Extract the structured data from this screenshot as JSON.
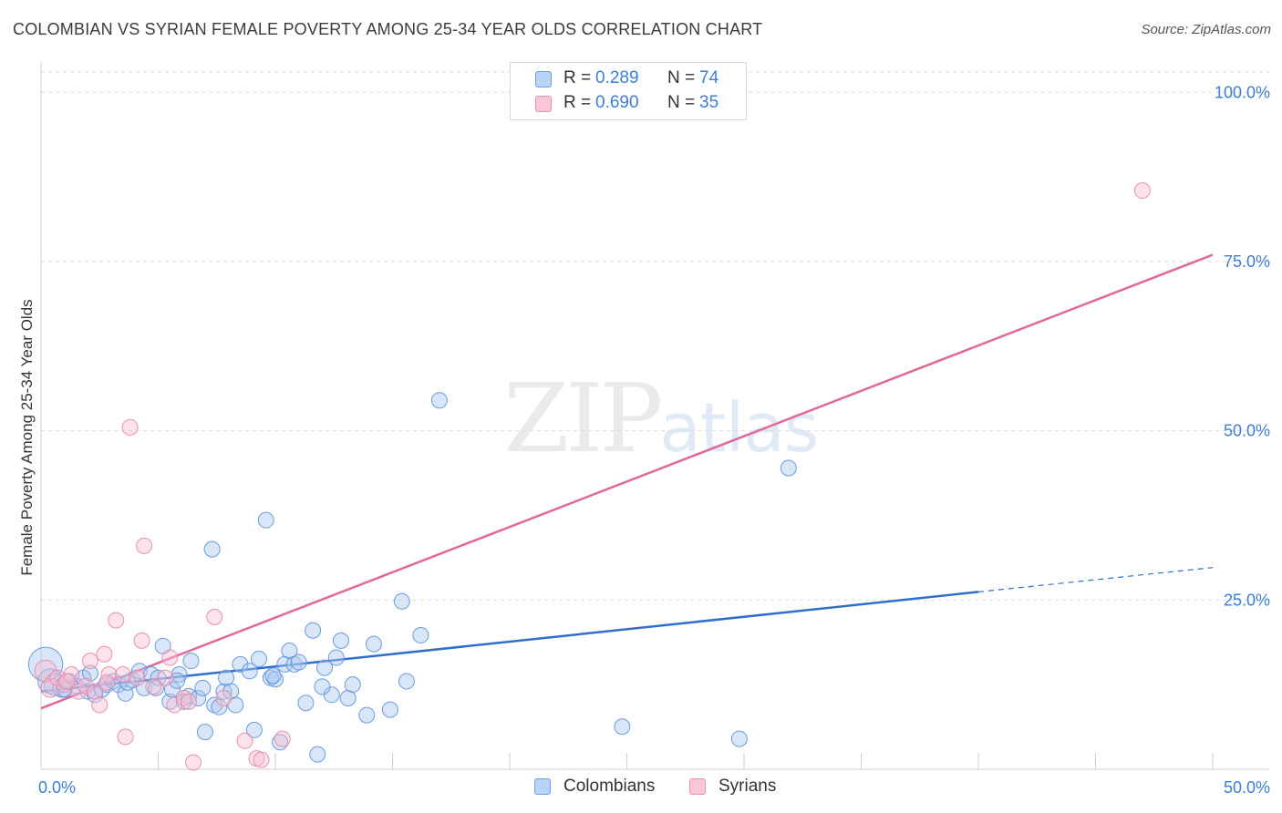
{
  "header": {
    "title": "COLOMBIAN VS SYRIAN FEMALE POVERTY AMONG 25-34 YEAR OLDS CORRELATION CHART",
    "source": "Source: ZipAtlas.com"
  },
  "watermark": {
    "zip": "ZIP",
    "atlas": "atlas"
  },
  "legend_top": {
    "rows": [
      {
        "r_label": "R =",
        "r_value": "0.289",
        "n_label": "N =",
        "n_value": "74"
      },
      {
        "r_label": "R =",
        "r_value": "0.690",
        "n_label": "N =",
        "n_value": "35"
      }
    ]
  },
  "legend_bottom": {
    "items": [
      "Colombians",
      "Syrians"
    ]
  },
  "colors": {
    "blue_fill": "#aac8f0",
    "blue_stroke": "#5b92da",
    "blue_line": "#2f6fcc",
    "pink_fill": "#f7bfd2",
    "pink_stroke": "#e886a8",
    "pink_line": "#e0689a",
    "grid": "#dddddd",
    "tick_text": "#3d7dd6"
  },
  "chart_data": {
    "type": "scatter",
    "title": "COLOMBIAN VS SYRIAN FEMALE POVERTY AMONG 25-34 YEAR OLDS CORRELATION CHART",
    "xlabel": "",
    "ylabel": "Female Poverty Among 25-34 Year Olds",
    "xlim": [
      0,
      50
    ],
    "ylim": [
      0,
      103
    ],
    "x_tick_labels": [
      "0.0%",
      "50.0%"
    ],
    "y_ticks": [
      25,
      50,
      75,
      100
    ],
    "y_tick_labels": [
      "25.0%",
      "50.0%",
      "75.0%",
      "100.0%"
    ],
    "grid": true,
    "series": [
      {
        "name": "Colombians",
        "r": 0.289,
        "n": 74,
        "trend": {
          "x0": 0,
          "y0": 11.5,
          "x1": 40,
          "y1": 26.2,
          "dash_to_x": 50,
          "dash_to_y": 29.8
        },
        "points": [
          [
            0.2,
            15.5,
            2.2
          ],
          [
            0.4,
            13.0,
            1.6
          ],
          [
            0.6,
            12.5,
            1.4
          ],
          [
            0.9,
            12.0,
            1.2
          ],
          [
            1.2,
            13.0,
            1.0
          ],
          [
            1.5,
            12.3,
            1.0
          ],
          [
            1.8,
            13.5,
            1.0
          ],
          [
            2.0,
            11.5,
            1.0
          ],
          [
            2.3,
            11.0,
            1.0
          ],
          [
            2.6,
            11.8,
            1.0
          ],
          [
            2.8,
            12.5,
            1.0
          ],
          [
            3.1,
            13.0,
            1.0
          ],
          [
            3.3,
            12.5,
            1.0
          ],
          [
            3.6,
            11.2,
            1.0
          ],
          [
            3.9,
            13.2,
            1.0
          ],
          [
            4.2,
            14.5,
            1.0
          ],
          [
            4.4,
            12.0,
            1.0
          ],
          [
            4.7,
            14.0,
            1.0
          ],
          [
            4.9,
            12.0,
            1.0
          ],
          [
            5.0,
            13.5,
            1.0
          ],
          [
            5.2,
            18.2,
            1.0
          ],
          [
            5.5,
            10.0,
            1.0
          ],
          [
            5.6,
            11.8,
            1.0
          ],
          [
            5.9,
            14.0,
            1.0
          ],
          [
            6.1,
            10.0,
            1.0
          ],
          [
            6.3,
            10.8,
            1.0
          ],
          [
            6.4,
            16.0,
            1.0
          ],
          [
            6.7,
            10.5,
            1.0
          ],
          [
            6.9,
            12.0,
            1.0
          ],
          [
            7.0,
            5.5,
            1.0
          ],
          [
            7.3,
            32.5,
            1.0
          ],
          [
            7.4,
            9.5,
            1.0
          ],
          [
            7.6,
            9.2,
            1.0
          ],
          [
            7.8,
            11.5,
            1.0
          ],
          [
            7.9,
            13.5,
            1.0
          ],
          [
            8.1,
            11.5,
            1.0
          ],
          [
            8.3,
            9.5,
            1.0
          ],
          [
            8.5,
            15.5,
            1.0
          ],
          [
            8.9,
            14.5,
            1.0
          ],
          [
            9.1,
            5.8,
            1.0
          ],
          [
            9.3,
            16.3,
            1.0
          ],
          [
            9.6,
            36.8,
            1.0
          ],
          [
            9.8,
            13.5,
            1.0
          ],
          [
            10.0,
            13.3,
            1.0
          ],
          [
            10.2,
            4.0,
            1.0
          ],
          [
            10.4,
            15.5,
            1.0
          ],
          [
            10.6,
            17.5,
            1.0
          ],
          [
            10.8,
            15.5,
            1.0
          ],
          [
            11.0,
            15.8,
            1.0
          ],
          [
            11.3,
            9.8,
            1.0
          ],
          [
            11.6,
            20.5,
            1.0
          ],
          [
            11.8,
            2.2,
            1.0
          ],
          [
            12.1,
            15.0,
            1.0
          ],
          [
            12.4,
            11.0,
            1.0
          ],
          [
            12.6,
            16.5,
            1.0
          ],
          [
            12.8,
            19.0,
            1.0
          ],
          [
            13.1,
            10.5,
            1.0
          ],
          [
            13.3,
            12.5,
            1.0
          ],
          [
            13.9,
            8.0,
            1.0
          ],
          [
            14.2,
            18.5,
            1.0
          ],
          [
            14.9,
            8.8,
            1.0
          ],
          [
            15.4,
            24.8,
            1.0
          ],
          [
            15.6,
            13.0,
            1.0
          ],
          [
            16.2,
            19.8,
            1.0
          ],
          [
            17.0,
            54.5,
            1.0
          ],
          [
            24.8,
            6.3,
            1.0
          ],
          [
            29.8,
            4.5,
            1.0
          ],
          [
            31.9,
            44.5,
            1.0
          ],
          [
            1.0,
            11.8,
            1.0
          ],
          [
            2.1,
            14.2,
            1.0
          ],
          [
            3.7,
            12.8,
            1.0
          ],
          [
            5.8,
            13.1,
            1.0
          ],
          [
            9.9,
            13.8,
            1.0
          ],
          [
            12.0,
            12.2,
            1.0
          ]
        ]
      },
      {
        "name": "Syrians",
        "r": 0.69,
        "n": 35,
        "trend": {
          "x0": 0,
          "y0": 9.0,
          "x1": 50,
          "y1": 76.0
        },
        "points": [
          [
            0.2,
            14.5,
            1.4
          ],
          [
            0.4,
            12.0,
            1.2
          ],
          [
            0.7,
            13.5,
            1.0
          ],
          [
            1.0,
            12.5,
            1.0
          ],
          [
            1.3,
            14.0,
            1.0
          ],
          [
            1.6,
            11.5,
            1.0
          ],
          [
            1.9,
            12.3,
            1.0
          ],
          [
            2.1,
            16.0,
            1.0
          ],
          [
            2.3,
            11.5,
            1.0
          ],
          [
            2.5,
            9.5,
            1.0
          ],
          [
            2.7,
            17.0,
            1.0
          ],
          [
            2.9,
            14.0,
            1.0
          ],
          [
            3.2,
            22.0,
            1.0
          ],
          [
            3.5,
            14.0,
            1.0
          ],
          [
            3.6,
            4.8,
            1.0
          ],
          [
            3.8,
            50.5,
            1.0
          ],
          [
            4.1,
            13.5,
            1.0
          ],
          [
            4.3,
            19.0,
            1.0
          ],
          [
            4.4,
            33.0,
            1.0
          ],
          [
            5.3,
            13.5,
            1.0
          ],
          [
            5.5,
            16.5,
            1.0
          ],
          [
            5.7,
            9.5,
            1.0
          ],
          [
            6.1,
            10.5,
            1.0
          ],
          [
            6.3,
            10.0,
            1.0
          ],
          [
            6.5,
            1.0,
            1.0
          ],
          [
            7.4,
            22.5,
            1.0
          ],
          [
            7.8,
            10.5,
            1.0
          ],
          [
            8.7,
            4.2,
            1.0
          ],
          [
            9.2,
            1.6,
            1.0
          ],
          [
            9.4,
            1.4,
            1.0
          ],
          [
            10.3,
            4.5,
            1.0
          ],
          [
            47.0,
            85.5,
            1.0
          ],
          [
            1.1,
            13.0,
            1.0
          ],
          [
            2.8,
            12.8,
            1.0
          ],
          [
            4.8,
            12.2,
            1.0
          ]
        ]
      }
    ]
  }
}
